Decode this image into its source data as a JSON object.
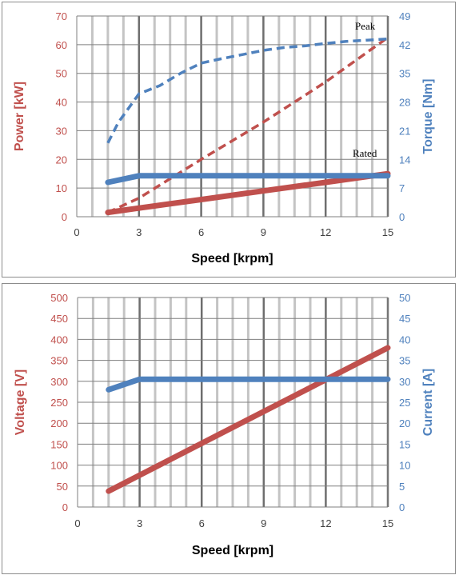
{
  "chart_data": [
    {
      "type": "line",
      "xlabel": "Speed [krpm]",
      "ylabel": "Power [kW]",
      "y2label": "Torque [Nm]",
      "xlim": [
        0,
        15
      ],
      "ylim": [
        0,
        70
      ],
      "y2lim": [
        0,
        49
      ],
      "xticks": [
        "0",
        "3",
        "6",
        "9",
        "12",
        "15"
      ],
      "yticks": [
        "0",
        "10",
        "20",
        "30",
        "40",
        "50",
        "60",
        "70"
      ],
      "y2ticks": [
        "0",
        "7",
        "14",
        "21",
        "28",
        "35",
        "42",
        "49"
      ],
      "grid": true,
      "annotations": [
        "Peak",
        "Rated"
      ],
      "series": [
        {
          "axis": "left",
          "style": "dashed",
          "color": "#c0504d",
          "x": [
            1.5,
            3,
            6,
            9,
            12,
            15
          ],
          "y": [
            1.5,
            6.5,
            20,
            33,
            47,
            62.5
          ]
        },
        {
          "axis": "left",
          "style": "solid",
          "color": "#c0504d",
          "x": [
            1.5,
            3,
            6,
            9,
            12,
            15
          ],
          "y": [
            1.5,
            3,
            6,
            9,
            12,
            15
          ]
        },
        {
          "axis": "right",
          "style": "dashed",
          "color": "#4f81bd",
          "x": [
            1.5,
            2,
            3,
            4,
            5,
            6,
            7,
            8,
            9,
            10,
            11,
            12,
            13,
            14,
            15
          ],
          "y": [
            18,
            23,
            30,
            32,
            35,
            37.5,
            38.6,
            39.6,
            40.6,
            41.3,
            41.7,
            42.3,
            42.8,
            43.1,
            43.4
          ]
        },
        {
          "axis": "right",
          "style": "solid",
          "color": "#4f81bd",
          "x": [
            1.5,
            3,
            6,
            9,
            12,
            15
          ],
          "y": [
            8.4,
            10,
            10,
            10,
            10,
            10
          ]
        }
      ]
    },
    {
      "type": "line",
      "xlabel": "Speed [krpm]",
      "ylabel": "Voltage [V]",
      "y2label": "Current [A]",
      "xlim": [
        0,
        15
      ],
      "ylim": [
        0,
        500
      ],
      "y2lim": [
        0,
        50
      ],
      "xticks": [
        "0",
        "3",
        "6",
        "9",
        "12",
        "15"
      ],
      "yticks": [
        "0",
        "50",
        "100",
        "150",
        "200",
        "250",
        "300",
        "350",
        "400",
        "450",
        "500"
      ],
      "y2ticks": [
        "0",
        "5",
        "10",
        "15",
        "20",
        "25",
        "30",
        "35",
        "40",
        "45",
        "50"
      ],
      "grid": true,
      "series": [
        {
          "axis": "left",
          "style": "solid",
          "color": "#c0504d",
          "x": [
            1.5,
            15
          ],
          "y": [
            38,
            380
          ]
        },
        {
          "axis": "right",
          "style": "solid",
          "color": "#4f81bd",
          "x": [
            1.5,
            3,
            6,
            9,
            12,
            15
          ],
          "y": [
            28,
            30.5,
            30.5,
            30.5,
            30.5,
            30.5
          ]
        }
      ]
    }
  ]
}
